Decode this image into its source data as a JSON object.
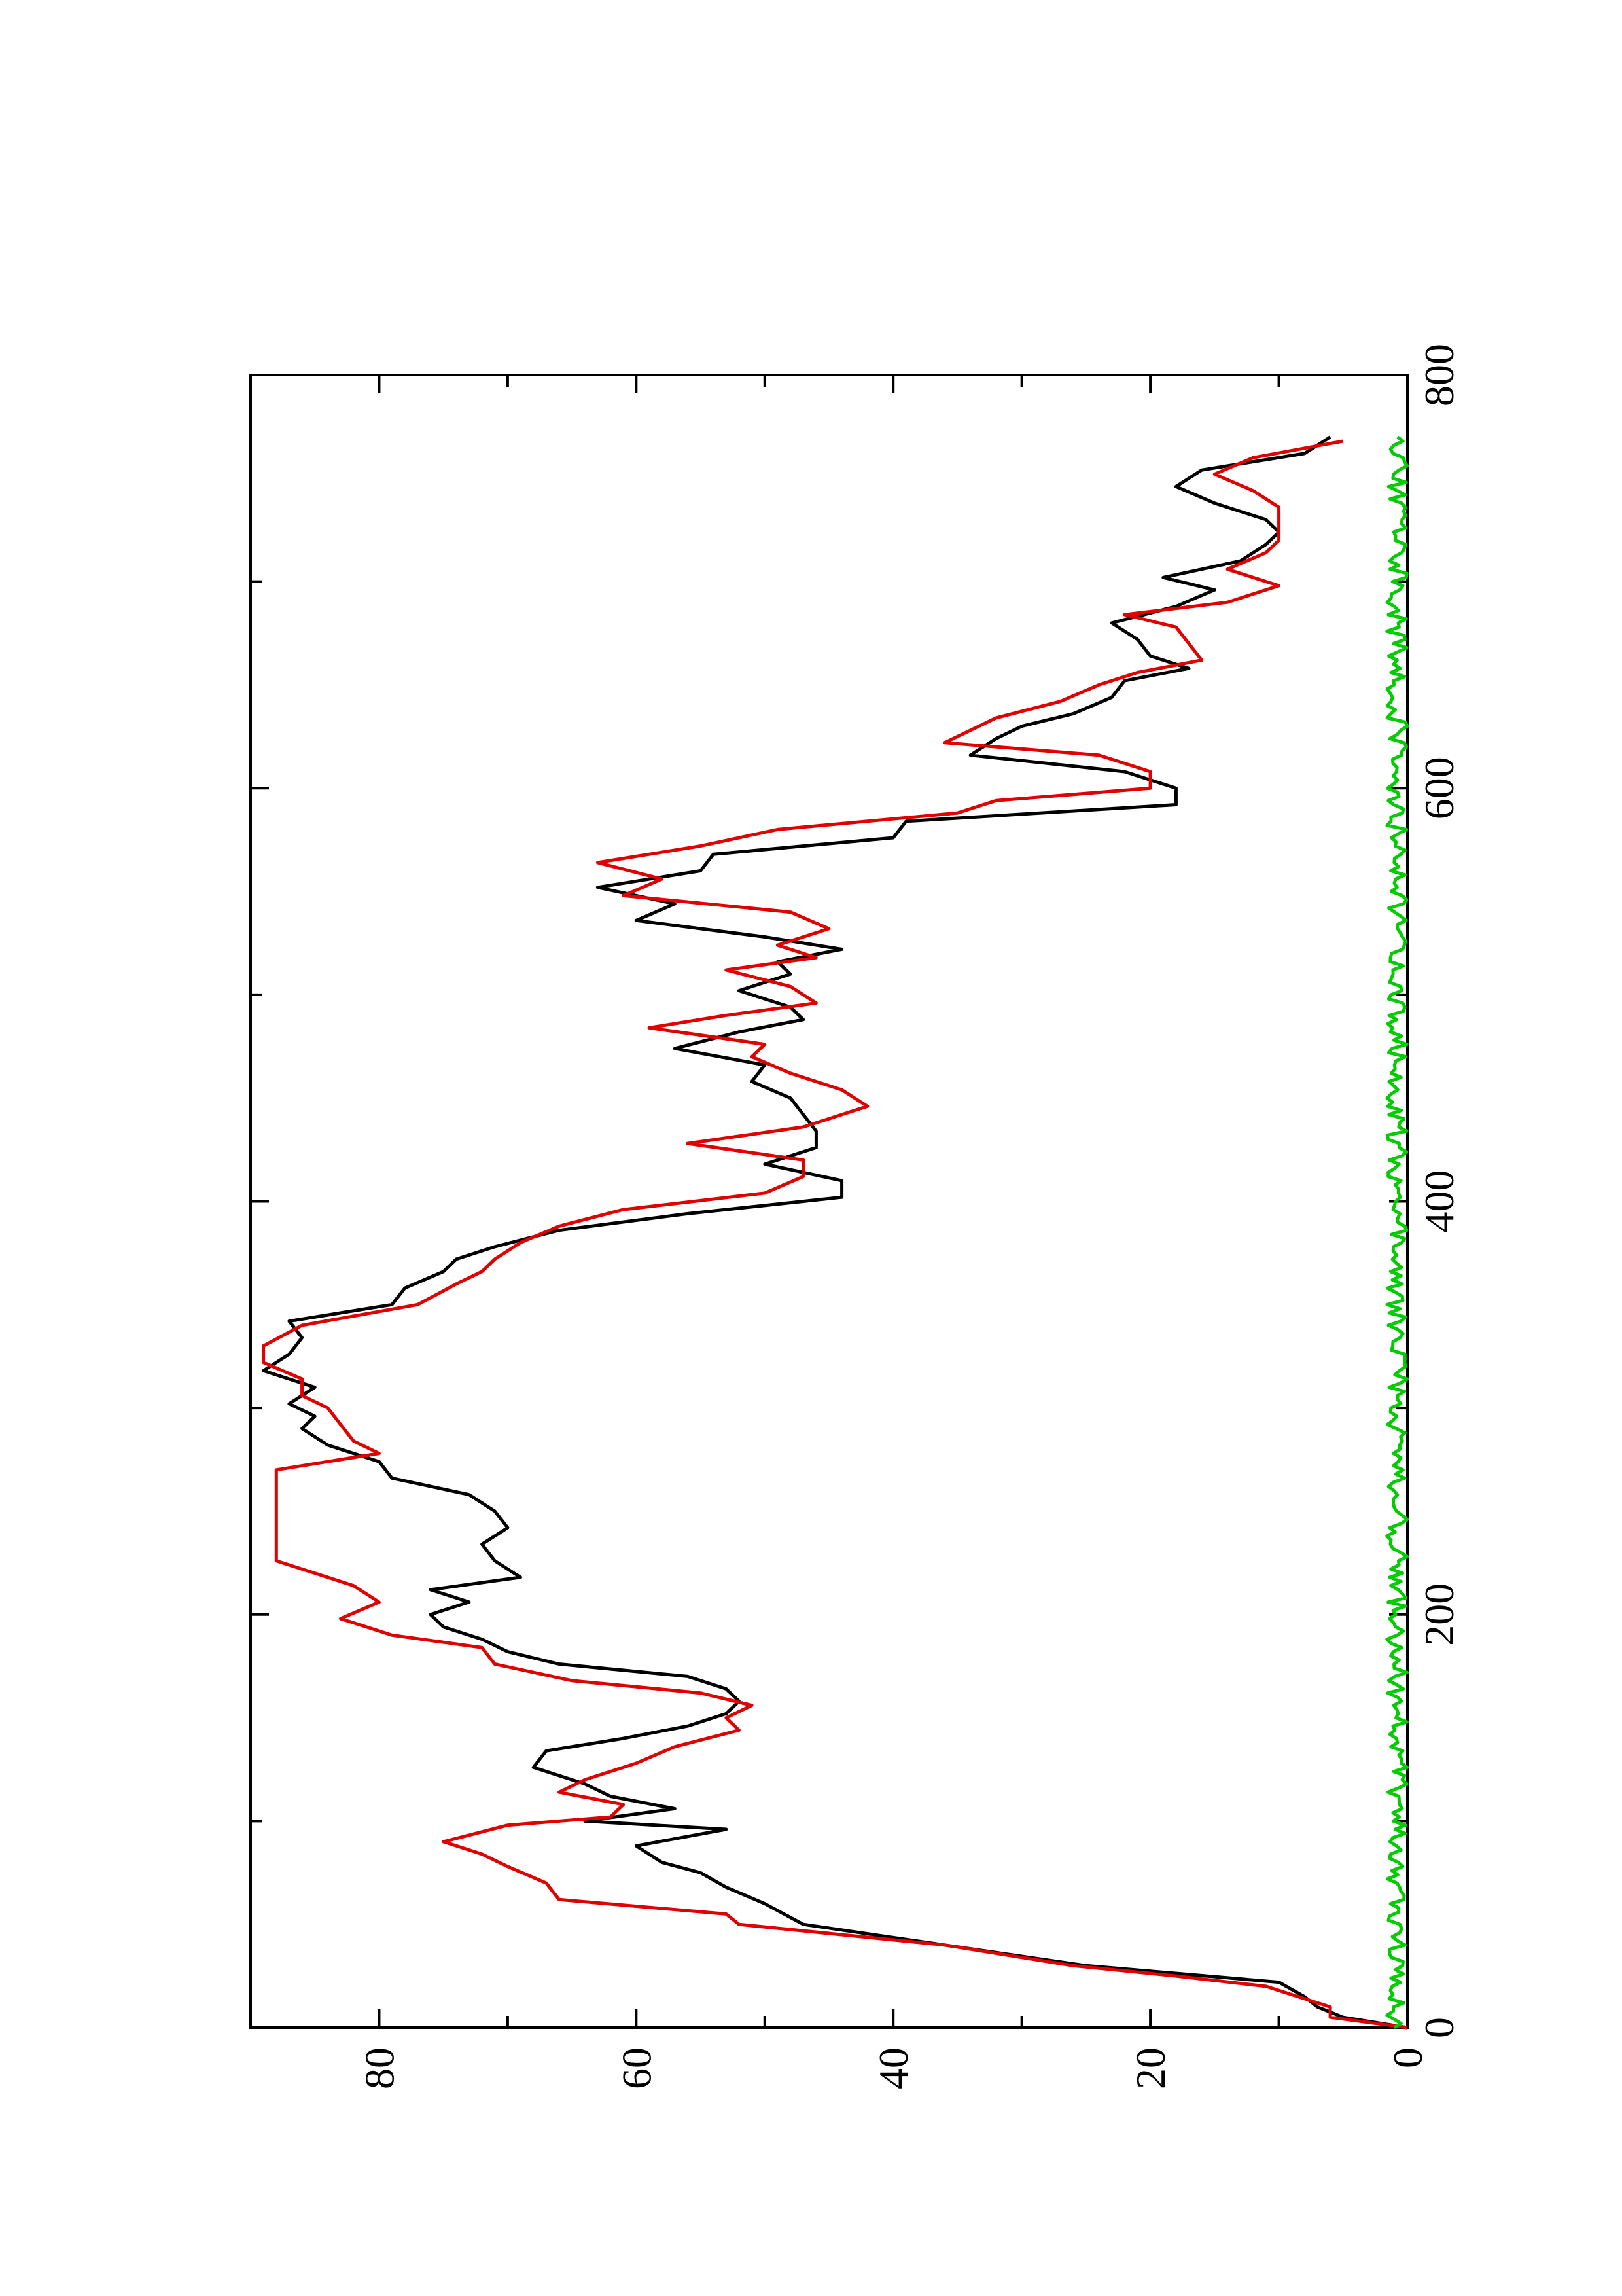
{
  "chart_data": {
    "type": "line",
    "orientation": "rotated-90-ccw",
    "title": "",
    "xlabel": "",
    "ylabel": "",
    "xlim": [
      0,
      800
    ],
    "ylim": [
      0,
      90
    ],
    "x_ticks": [
      "0",
      "200",
      "400",
      "600",
      "800"
    ],
    "y_ticks": [
      "0",
      "20",
      "40",
      "60",
      "80"
    ],
    "grid": false,
    "legend": "none",
    "colors": {
      "frame": "#000000",
      "black": "#000000",
      "red": "#e00000",
      "green": "#00cc00"
    },
    "series": [
      {
        "color": "#000000",
        "x": [
          0,
          5,
          10,
          15,
          22,
          30,
          40,
          50,
          60,
          68,
          75,
          80,
          88,
          96,
          100,
          106,
          112,
          118,
          126,
          134,
          140,
          146,
          152,
          158,
          164,
          170,
          176,
          182,
          188,
          194,
          200,
          206,
          212,
          218,
          226,
          234,
          242,
          250,
          258,
          266,
          274,
          282,
          290,
          296,
          302,
          310,
          318,
          326,
          334,
          342,
          350,
          358,
          366,
          372,
          378,
          386,
          394,
          402,
          410,
          418,
          426,
          434,
          442,
          450,
          458,
          466,
          474,
          482,
          488,
          494,
          502,
          510,
          516,
          522,
          528,
          536,
          544,
          552,
          560,
          568,
          576,
          584,
          592,
          600,
          608,
          616,
          624,
          630,
          636,
          644,
          652,
          658,
          664,
          672,
          680,
          688,
          696,
          702,
          710,
          718,
          724,
          730,
          738,
          746,
          754,
          762,
          770
        ],
        "y": [
          0,
          5,
          7,
          8,
          10,
          25,
          36,
          47,
          50,
          53,
          55,
          58,
          60,
          53,
          64,
          57,
          62,
          64,
          68,
          67,
          61,
          56,
          53,
          52,
          53,
          56,
          66,
          70,
          72,
          75,
          76,
          73,
          76,
          69,
          71,
          72,
          70,
          71,
          73,
          79,
          80,
          84,
          86,
          85,
          87,
          85,
          89,
          87,
          86,
          87,
          79,
          78,
          75,
          74,
          71,
          66,
          56,
          44,
          44,
          50,
          46,
          46,
          47,
          48,
          51,
          50,
          57,
          52,
          47,
          48,
          52,
          48,
          49,
          44,
          50,
          60,
          57,
          63,
          55,
          54,
          40,
          39,
          18,
          18,
          22,
          34,
          32,
          30,
          26,
          23,
          22,
          17,
          20,
          21,
          23,
          18,
          15,
          19,
          13,
          11,
          10,
          11,
          15,
          18,
          16,
          8,
          6
        ]
      },
      {
        "color": "#e00000",
        "x": [
          0,
          5,
          10,
          14,
          20,
          25,
          30,
          40,
          50,
          55,
          62,
          70,
          78,
          84,
          90,
          98,
          102,
          108,
          114,
          120,
          128,
          136,
          144,
          150,
          156,
          162,
          168,
          176,
          184,
          190,
          198,
          206,
          214,
          220,
          226,
          234,
          246,
          254,
          262,
          270,
          278,
          284,
          292,
          300,
          306,
          314,
          322,
          330,
          340,
          350,
          360,
          366,
          372,
          380,
          388,
          396,
          404,
          412,
          420,
          428,
          436,
          446,
          454,
          462,
          470,
          476,
          484,
          490,
          496,
          504,
          512,
          518,
          524,
          532,
          540,
          548,
          556,
          564,
          572,
          580,
          588,
          594,
          600,
          608,
          616,
          622,
          628,
          634,
          642,
          650,
          656,
          662,
          670,
          678,
          684,
          690,
          698,
          706,
          714,
          720,
          728,
          736,
          744,
          752,
          760,
          768
        ],
        "y": [
          0,
          6,
          6,
          8,
          11,
          18,
          26,
          36,
          52,
          53,
          66,
          67,
          70,
          72,
          75,
          70,
          62,
          61,
          66,
          64,
          60,
          57,
          52,
          53,
          51,
          55,
          65,
          71,
          72,
          79,
          83,
          80,
          82,
          85,
          88,
          88,
          88,
          88,
          88,
          88,
          80,
          82,
          83,
          84,
          86,
          86,
          89,
          89,
          86,
          77,
          74,
          72,
          71,
          69,
          66,
          61,
          50,
          47,
          47,
          56,
          47,
          42,
          44,
          48,
          51,
          50,
          59,
          53,
          46,
          48,
          53,
          46,
          49,
          45,
          48,
          61,
          58,
          63,
          55,
          49,
          35,
          32,
          20,
          20,
          24,
          36,
          34,
          32,
          27,
          24,
          21,
          16,
          17,
          18,
          22,
          14,
          10,
          14,
          11,
          10,
          10,
          10,
          12,
          15,
          12,
          5
        ]
      },
      {
        "color": "#00cc00",
        "noise_level": 0.8,
        "xmax": 770
      }
    ]
  }
}
